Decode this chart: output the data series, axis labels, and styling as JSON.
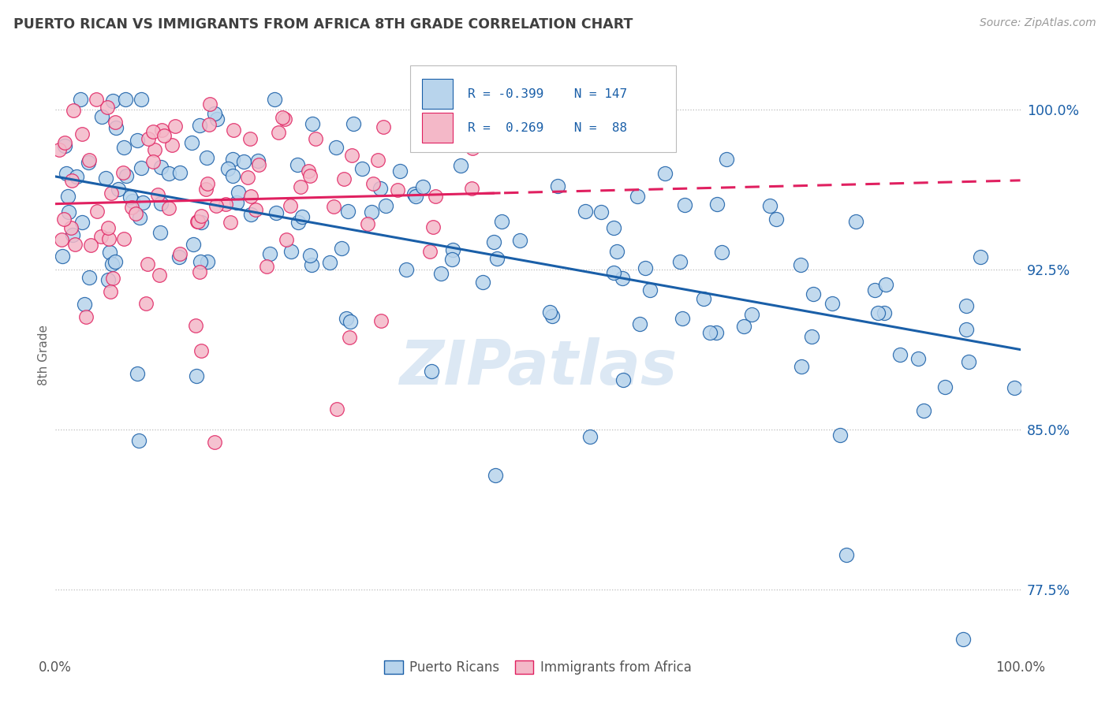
{
  "title": "PUERTO RICAN VS IMMIGRANTS FROM AFRICA 8TH GRADE CORRELATION CHART",
  "source": "Source: ZipAtlas.com",
  "ylabel": "8th Grade",
  "y_ticks": [
    0.775,
    0.85,
    0.925,
    1.0
  ],
  "y_tick_labels": [
    "77.5%",
    "85.0%",
    "92.5%",
    "100.0%"
  ],
  "x_range": [
    0.0,
    1.0
  ],
  "y_range": [
    0.745,
    1.025
  ],
  "blue_color": "#b8d4ec",
  "pink_color": "#f4b8c8",
  "trend_blue": "#1a5fa8",
  "trend_pink": "#e02060",
  "watermark": "ZIPatlas",
  "legend_text_color": "#1a5fa8",
  "title_color": "#404040",
  "blue_trend_start_y": 0.972,
  "blue_trend_end_y": 0.898,
  "pink_trend_intercept": 0.952,
  "pink_trend_slope": 0.06
}
